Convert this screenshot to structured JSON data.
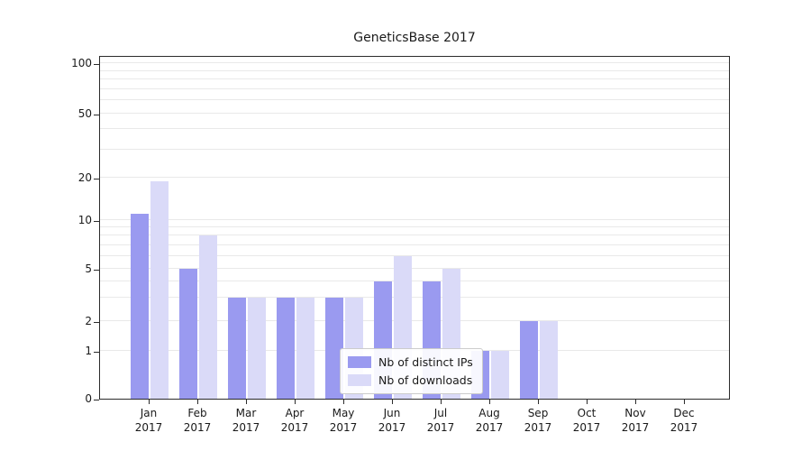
{
  "title": "GeneticsBase 2017",
  "chart_data": {
    "type": "bar",
    "title": "GeneticsBase 2017",
    "categories": [
      "Jan 2017",
      "Feb 2017",
      "Mar 2017",
      "Apr 2017",
      "May 2017",
      "Jun 2017",
      "Jul 2017",
      "Aug 2017",
      "Sep 2017",
      "Oct 2017",
      "Nov 2017",
      "Dec 2017"
    ],
    "series": [
      {
        "name": "Nb of distinct IPs",
        "color": "#9a9af0",
        "values": [
          11,
          5,
          3,
          3,
          3,
          4,
          4,
          1,
          2,
          0,
          0,
          0
        ]
      },
      {
        "name": "Nb of downloads",
        "color": "#dadaf8",
        "values": [
          19,
          8,
          3,
          3,
          3,
          6,
          5,
          1,
          2,
          0,
          0,
          0
        ]
      }
    ],
    "y_scale": "symlog",
    "y_ticks": [
      0,
      1,
      2,
      5,
      10,
      20,
      50,
      100
    ],
    "grid_values": [
      1,
      2,
      3,
      4,
      5,
      6,
      7,
      8,
      9,
      10,
      20,
      30,
      40,
      50,
      60,
      70,
      80,
      90,
      100
    ],
    "ylim": [
      0,
      110
    ],
    "grid": "on",
    "legend_position": "lower center"
  },
  "legend": {
    "items": [
      {
        "label": "Nb of distinct IPs",
        "color": "#9a9af0"
      },
      {
        "label": "Nb of downloads",
        "color": "#dadaf8"
      }
    ]
  }
}
